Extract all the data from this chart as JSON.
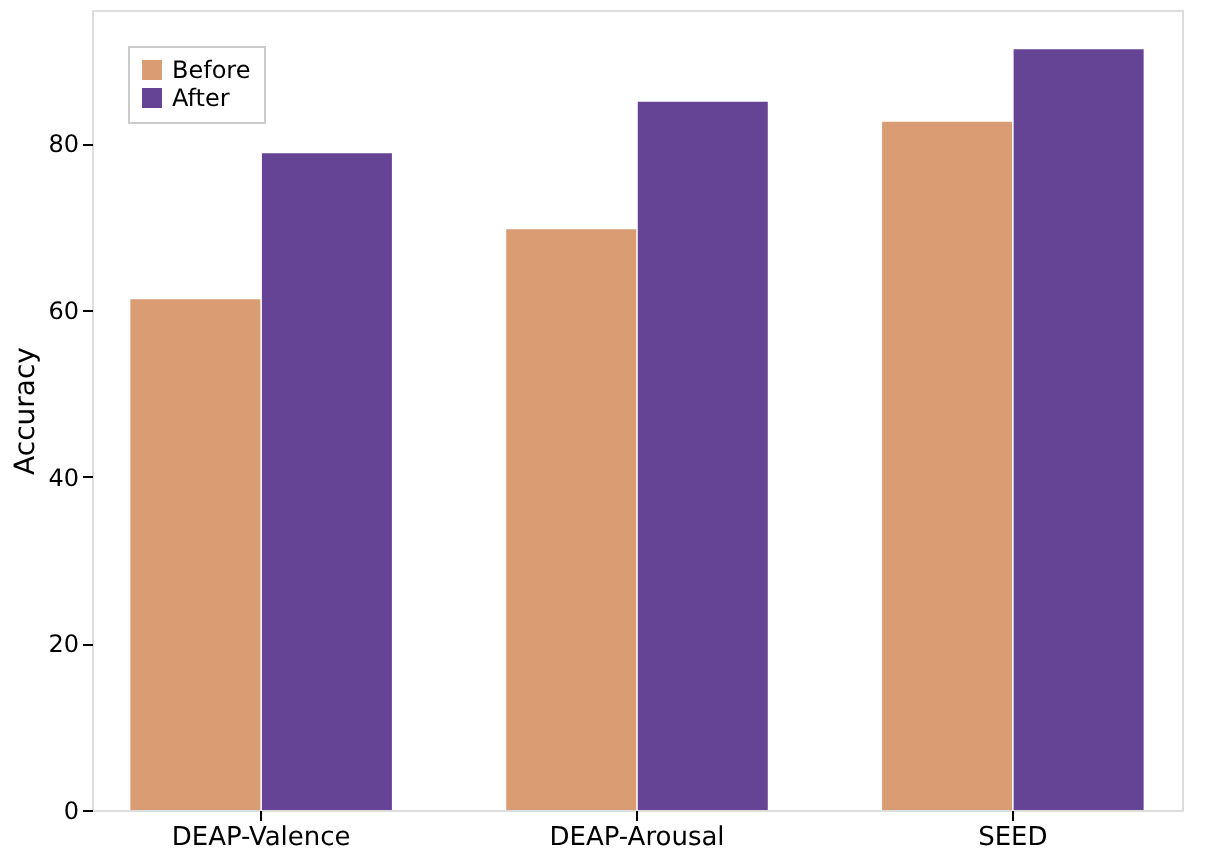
{
  "chart_data": {
    "type": "bar",
    "ylabel": "Accuracy",
    "categories": [
      "DEAP-Valence",
      "DEAP-Arousal",
      "SEED"
    ],
    "series": [
      {
        "name": "Before",
        "color": "#d99c73",
        "values": [
          61.3,
          69.7,
          82.6
        ]
      },
      {
        "name": "After",
        "color": "#654495",
        "values": [
          78.8,
          85.0,
          91.3
        ]
      }
    ],
    "ylim": [
      0,
      96
    ],
    "yticks": [
      0,
      20,
      40,
      60,
      80
    ],
    "grid": false,
    "legend": "top left"
  }
}
